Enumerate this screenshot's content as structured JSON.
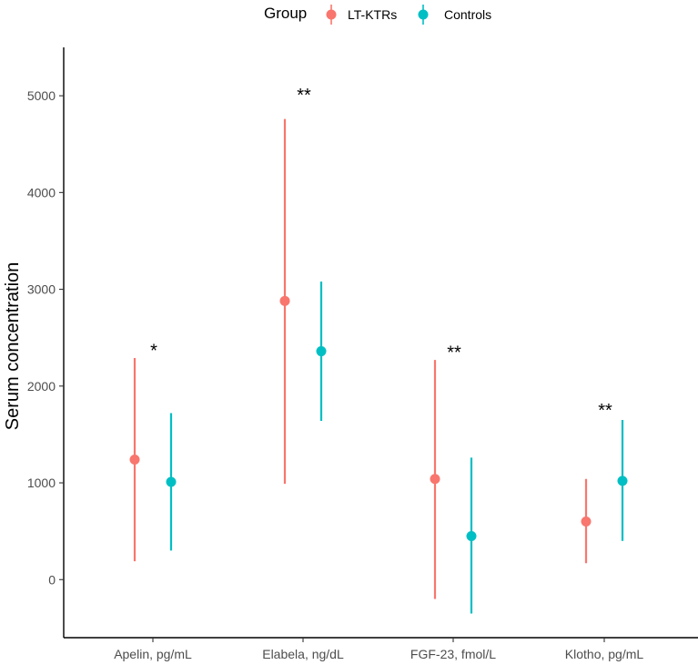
{
  "chart_data": {
    "type": "scatter",
    "subtype": "point-range",
    "ylabel": "Serum concentration",
    "xlabel": "",
    "ylim": [
      -600,
      5500
    ],
    "yticks": [
      0,
      1000,
      2000,
      3000,
      4000,
      5000
    ],
    "categories": [
      "Apelin, pg/mL",
      "Elabela, ng/dL",
      "FGF-23, fmol/L",
      "Klotho, pg/mL"
    ],
    "legend": {
      "title": "Group",
      "position": "top"
    },
    "series": [
      {
        "name": "LT-KTRs",
        "color": "#F8766D",
        "points": [
          {
            "category": "Apelin, pg/mL",
            "mean": 1240,
            "low": 190,
            "high": 2290
          },
          {
            "category": "Elabela, ng/dL",
            "mean": 2880,
            "low": 990,
            "high": 4760
          },
          {
            "category": "FGF-23, fmol/L",
            "mean": 1040,
            "low": -200,
            "high": 2270
          },
          {
            "category": "Klotho, pg/mL",
            "mean": 600,
            "low": 170,
            "high": 1040
          }
        ]
      },
      {
        "name": "Controls",
        "color": "#00BFC4",
        "points": [
          {
            "category": "Apelin, pg/mL",
            "mean": 1010,
            "low": 300,
            "high": 1720
          },
          {
            "category": "Elabela, ng/dL",
            "mean": 2360,
            "low": 1640,
            "high": 3080
          },
          {
            "category": "FGF-23, fmol/L",
            "mean": 450,
            "low": -350,
            "high": 1260
          },
          {
            "category": "Klotho, pg/mL",
            "mean": 1020,
            "low": 400,
            "high": 1650
          }
        ]
      }
    ],
    "annotations": [
      {
        "category": "Apelin, pg/mL",
        "text": "*",
        "y": 2400
      },
      {
        "category": "Elabela, ng/dL",
        "text": "**",
        "y": 5040
      },
      {
        "category": "FGF-23, fmol/L",
        "text": "**",
        "y": 2380
      },
      {
        "category": "Klotho, pg/mL",
        "text": "**",
        "y": 1780
      }
    ]
  }
}
